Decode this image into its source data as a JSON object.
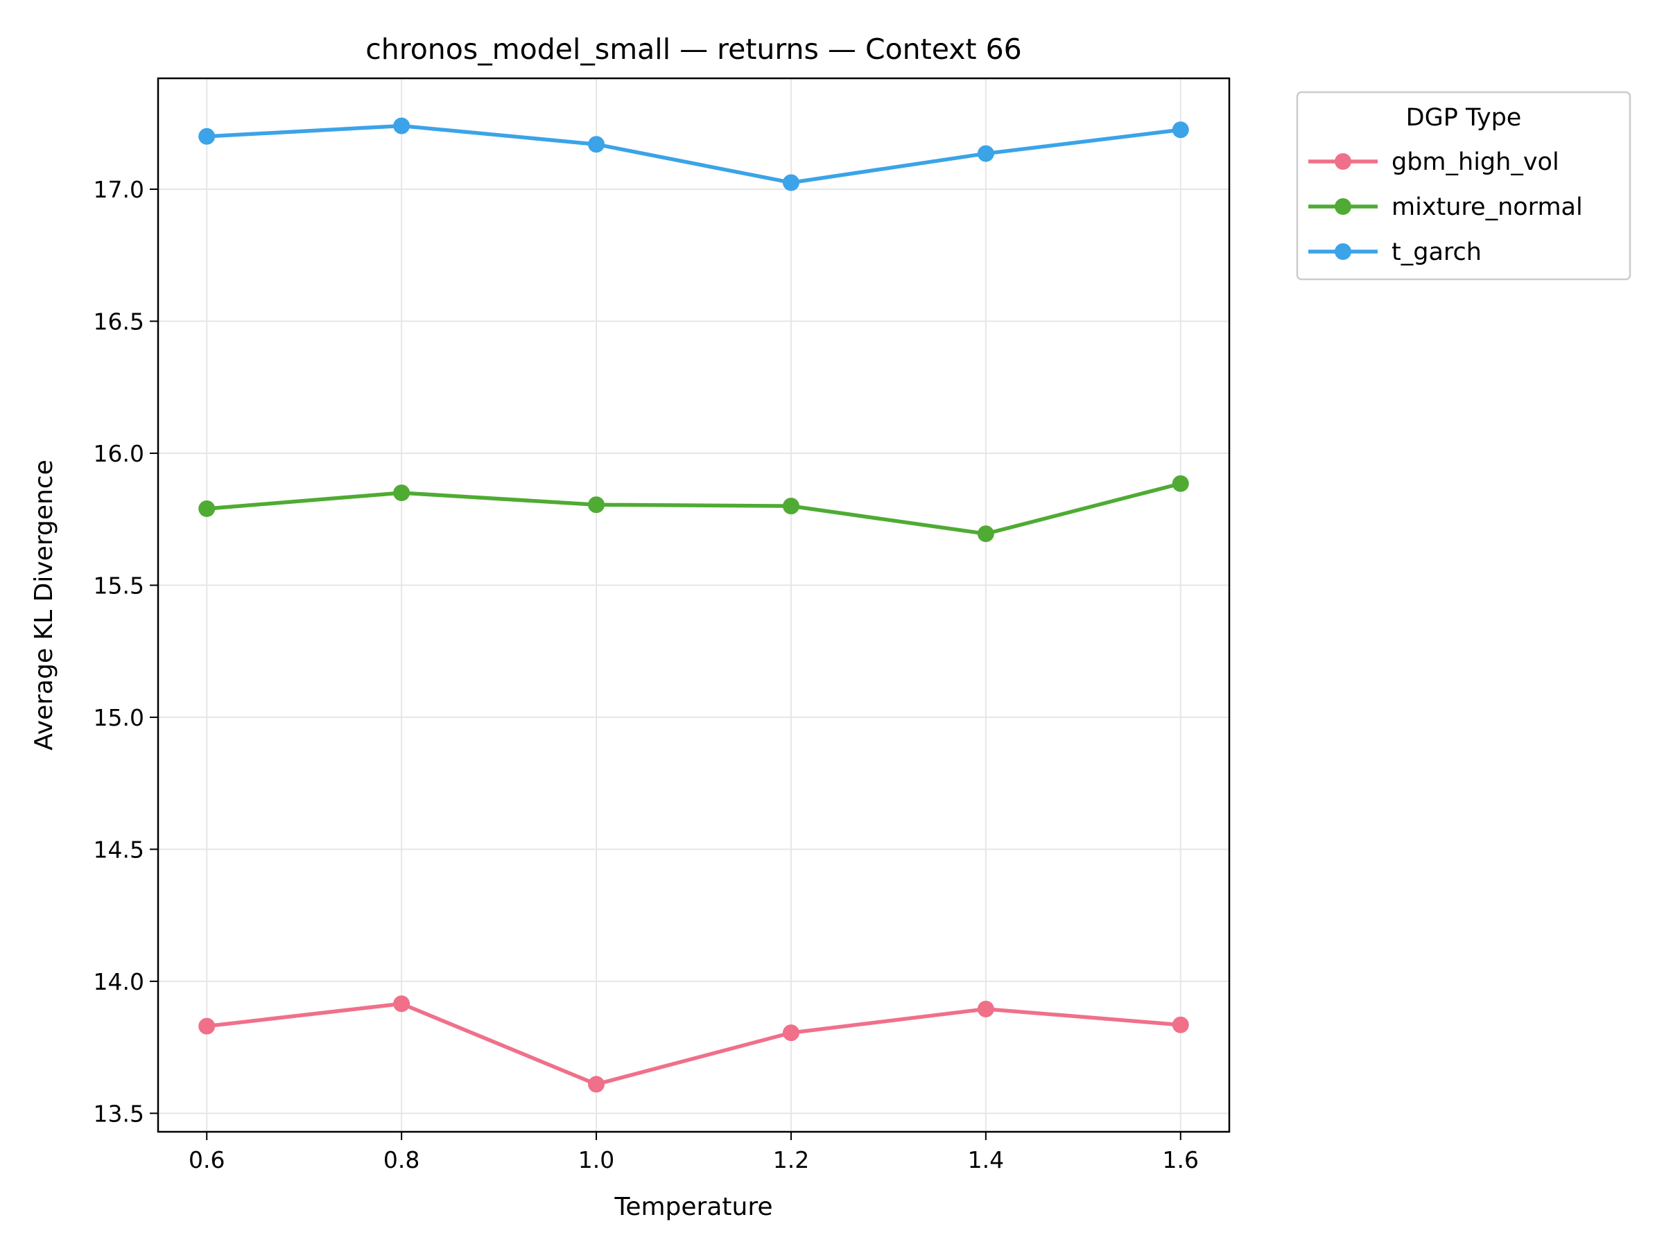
{
  "chart_data": {
    "type": "line",
    "title": "chronos_model_small — returns — Context 66",
    "xlabel": "Temperature",
    "ylabel": "Average KL Divergence",
    "x": [
      0.6,
      0.8,
      1.0,
      1.2,
      1.4,
      1.6
    ],
    "x_ticks": [
      "0.6",
      "0.8",
      "1.0",
      "1.2",
      "1.4",
      "1.6"
    ],
    "y_ticks": [
      "13.5",
      "14.0",
      "14.5",
      "15.0",
      "15.5",
      "16.0",
      "16.5",
      "17.0"
    ],
    "xlim": [
      0.55,
      1.65
    ],
    "ylim": [
      13.43,
      17.42
    ],
    "grid": true,
    "legend": {
      "title": "DGP Type",
      "placement": "outside-top-right"
    },
    "series": [
      {
        "name": "gbm_high_vol",
        "color": "#f07089",
        "values": [
          13.83,
          13.915,
          13.61,
          13.805,
          13.895,
          13.835
        ]
      },
      {
        "name": "mixture_normal",
        "color": "#4fab33",
        "values": [
          15.79,
          15.85,
          15.805,
          15.8,
          15.695,
          15.885
        ]
      },
      {
        "name": "t_garch",
        "color": "#3ba3e8",
        "values": [
          17.2,
          17.24,
          17.17,
          17.025,
          17.135,
          17.225
        ]
      }
    ]
  }
}
